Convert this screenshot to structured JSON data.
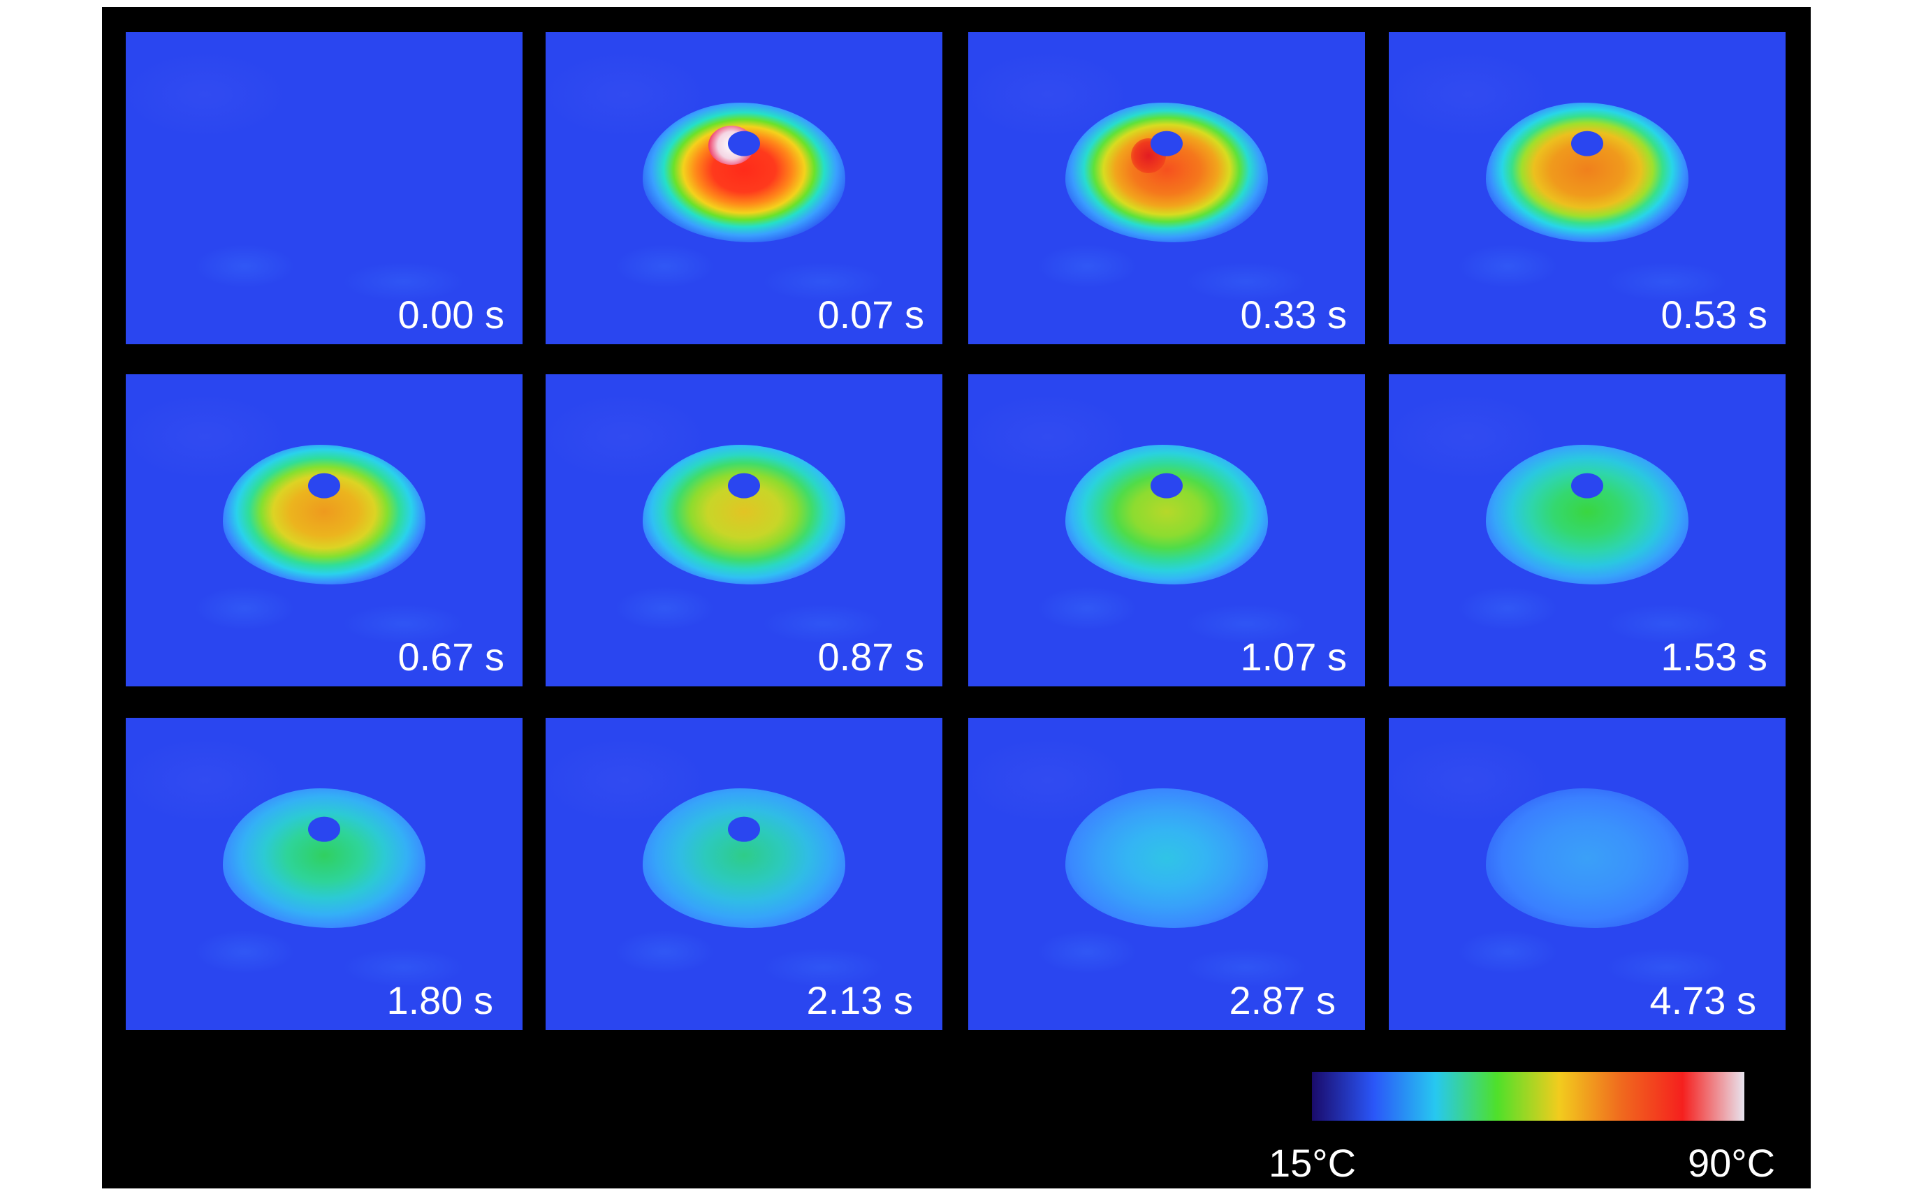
{
  "frames": [
    {
      "time_label": "0.00 s"
    },
    {
      "time_label": "0.07 s"
    },
    {
      "time_label": "0.33 s"
    },
    {
      "time_label": "0.53 s"
    },
    {
      "time_label": "0.67 s"
    },
    {
      "time_label": "0.87 s"
    },
    {
      "time_label": "1.07 s"
    },
    {
      "time_label": "1.53 s"
    },
    {
      "time_label": "1.80 s"
    },
    {
      "time_label": "2.13 s"
    },
    {
      "time_label": "2.87 s"
    },
    {
      "time_label": "4.73 s"
    }
  ],
  "colorbar": {
    "min_label": "15°C",
    "max_label": "90°C",
    "colors": [
      "#1a0b6a",
      "#2a56f8",
      "#27c8f0",
      "#4fe02a",
      "#f2cc1e",
      "#f06a1e",
      "#f5201e",
      "#e8e4ee"
    ]
  },
  "colors": {
    "background": "#000000",
    "frame_base": "#2a46f0",
    "label_text": "#ffffff"
  }
}
